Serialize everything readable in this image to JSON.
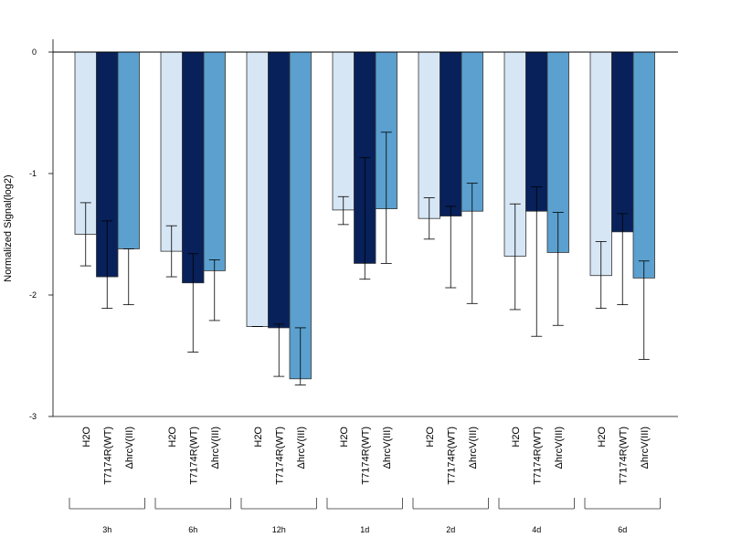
{
  "chart_data": {
    "type": "bar",
    "ylabel": "Normalized Signal(log2)",
    "ylim": [
      -3,
      0.1
    ],
    "yticks": [
      "0",
      "-1",
      "-2",
      "-3"
    ],
    "ytick_values": [
      0,
      -1,
      -2,
      -3
    ],
    "groups": [
      {
        "label": "3h",
        "bars": [
          {
            "label": "H2O",
            "value": -1.5,
            "err_low": -1.76,
            "err_high": -1.24
          },
          {
            "label": "T7174R(WT)",
            "value": -1.85,
            "err_low": -2.11,
            "err_high": -1.39
          },
          {
            "label": "ΔhrcV(III)",
            "value": -1.62,
            "err_low": -2.08,
            "err_high": -1.62
          }
        ]
      },
      {
        "label": "6h",
        "bars": [
          {
            "label": "H2O",
            "value": -1.64,
            "err_low": -1.85,
            "err_high": -1.43
          },
          {
            "label": "T7174R(WT)",
            "value": -1.9,
            "err_low": -2.47,
            "err_high": -1.66
          },
          {
            "label": "ΔhrcV(III)",
            "value": -1.8,
            "err_low": -2.21,
            "err_high": -1.71
          }
        ]
      },
      {
        "label": "12h",
        "bars": [
          {
            "label": "H2O",
            "value": -2.26,
            "err_low": -2.26,
            "err_high": -2.26
          },
          {
            "label": "T7174R(WT)",
            "value": -2.27,
            "err_low": -2.67,
            "err_high": -2.24
          },
          {
            "label": "ΔhrcV(III)",
            "value": -2.69,
            "err_low": -2.74,
            "err_high": -2.27
          }
        ]
      },
      {
        "label": "1d",
        "bars": [
          {
            "label": "H2O",
            "value": -1.3,
            "err_low": -1.42,
            "err_high": -1.19
          },
          {
            "label": "T7174R(WT)",
            "value": -1.74,
            "err_low": -1.87,
            "err_high": -0.87
          },
          {
            "label": "ΔhrcV(III)",
            "value": -1.29,
            "err_low": -1.74,
            "err_high": -0.66
          }
        ]
      },
      {
        "label": "2d",
        "bars": [
          {
            "label": "H2O",
            "value": -1.37,
            "err_low": -1.54,
            "err_high": -1.2
          },
          {
            "label": "T7174R(WT)",
            "value": -1.35,
            "err_low": -1.94,
            "err_high": -1.27
          },
          {
            "label": "ΔhrcV(III)",
            "value": -1.31,
            "err_low": -2.07,
            "err_high": -1.08
          }
        ]
      },
      {
        "label": "4d",
        "bars": [
          {
            "label": "H2O",
            "value": -1.68,
            "err_low": -2.12,
            "err_high": -1.25
          },
          {
            "label": "T7174R(WT)",
            "value": -1.31,
            "err_low": -2.34,
            "err_high": -1.11
          },
          {
            "label": "ΔhrcV(III)",
            "value": -1.65,
            "err_low": -2.25,
            "err_high": -1.32
          }
        ]
      },
      {
        "label": "6d",
        "bars": [
          {
            "label": "H2O",
            "value": -1.84,
            "err_low": -2.11,
            "err_high": -1.56
          },
          {
            "label": "T7174R(WT)",
            "value": -1.48,
            "err_low": -2.08,
            "err_high": -1.33
          },
          {
            "label": "ΔhrcV(III)",
            "value": -1.86,
            "err_low": -2.53,
            "err_high": -1.72
          }
        ]
      }
    ]
  },
  "colors": {
    "H2O": "#d6e6f5",
    "T7174R(WT)": "#08215a",
    "ΔhrcV(III)": "#5ba0cf",
    "axis": "#000000",
    "bar_stroke": "#333333"
  }
}
